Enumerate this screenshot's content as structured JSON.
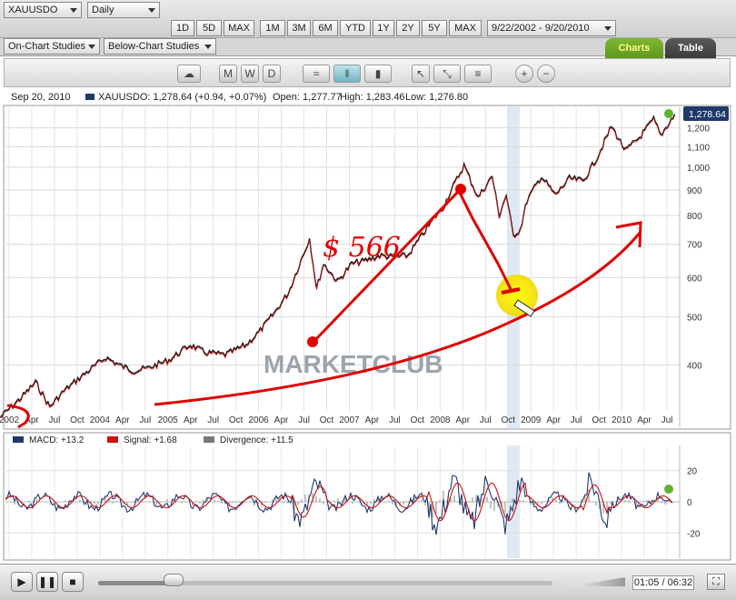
{
  "toolbar": {
    "symbol": "XAUUSDO",
    "interval": "Daily",
    "range_buttons_left": [
      "1D",
      "5D",
      "MAX"
    ],
    "range_buttons_right": [
      "1M",
      "3M",
      "6M",
      "YTD",
      "1Y",
      "2Y",
      "5Y",
      "MAX"
    ],
    "date_range": "9/22/2002 - 9/20/2010",
    "on_chart_studies": "On-Chart Studies",
    "below_chart_studies": "Below-Chart Studies"
  },
  "tabs": {
    "charts": "Charts",
    "table": "Table"
  },
  "icons": [
    "chat-bubble-icon",
    "m-pattern-icon",
    "w-pattern-icon",
    "d-pattern-icon",
    "line-chart-icon",
    "ohlc-chart-icon",
    "candle-chart-icon",
    "pointer-icon",
    "trendline-icon",
    "fibonacci-icon",
    "zoom-in-icon",
    "zoom-out-icon"
  ],
  "info": {
    "date": "Sep 20, 2010",
    "quote": "XAUUSDO: 1,278.64 (+0.94, +0.07%)",
    "open": "Open: 1,277.77",
    "high": "High: 1,283.46",
    "low": "Low: 1,276.80"
  },
  "watermark": "MARKETCLUB",
  "annotation": {
    "text": "$ 566"
  },
  "last_price_tag": "1,278.64",
  "chart_data": [
    {
      "type": "line",
      "series": [
        {
          "name": "XAUUSDO",
          "points": [
            [
              "2002-09",
              315
            ],
            [
              "2002-12",
              345
            ],
            [
              "2003-02",
              370
            ],
            [
              "2003-04",
              330
            ],
            [
              "2003-06",
              355
            ],
            [
              "2003-09",
              385
            ],
            [
              "2003-12",
              415
            ],
            [
              "2004-02",
              400
            ],
            [
              "2004-04",
              390
            ],
            [
              "2004-06",
              395
            ],
            [
              "2004-09",
              410
            ],
            [
              "2004-12",
              440
            ],
            [
              "2005-02",
              425
            ],
            [
              "2005-05",
              420
            ],
            [
              "2005-08",
              440
            ],
            [
              "2005-10",
              470
            ],
            [
              "2005-12",
              510
            ],
            [
              "2006-02",
              560
            ],
            [
              "2006-05",
              720
            ],
            [
              "2006-06",
              570
            ],
            [
              "2006-07",
              640
            ],
            [
              "2006-09",
              590
            ],
            [
              "2006-11",
              640
            ],
            [
              "2007-01",
              650
            ],
            [
              "2007-03",
              665
            ],
            [
              "2007-05",
              660
            ],
            [
              "2007-07",
              665
            ],
            [
              "2007-09",
              730
            ],
            [
              "2007-11",
              800
            ],
            [
              "2007-12",
              830
            ],
            [
              "2008-01",
              890
            ],
            [
              "2008-03",
              1010
            ],
            [
              "2008-05",
              870
            ],
            [
              "2008-07",
              960
            ],
            [
              "2008-08",
              800
            ],
            [
              "2008-09",
              880
            ],
            [
              "2008-10",
              730
            ],
            [
              "2008-11",
              750
            ],
            [
              "2008-12",
              860
            ],
            [
              "2009-02",
              960
            ],
            [
              "2009-04",
              880
            ],
            [
              "2009-06",
              950
            ],
            [
              "2009-08",
              940
            ],
            [
              "2009-10",
              1050
            ],
            [
              "2009-12",
              1210
            ],
            [
              "2010-02",
              1080
            ],
            [
              "2010-04",
              1150
            ],
            [
              "2010-06",
              1250
            ],
            [
              "2010-07",
              1160
            ],
            [
              "2010-09",
              1278.64
            ]
          ]
        }
      ],
      "y_ticks": [
        400,
        500,
        600,
        700,
        800,
        900,
        1000,
        1100,
        1200
      ],
      "y_tick_labels": [
        "400",
        "500",
        "600",
        "700",
        "800",
        "900",
        "1,000",
        "1,100",
        "1,200"
      ],
      "x_ticks": [
        "2002",
        "Apr",
        "Jul",
        "Oct",
        "2004",
        "Apr",
        "Jul",
        "2005",
        "Apr",
        "Jul",
        "Oct",
        "2006",
        "Apr",
        "Jul",
        "Oct",
        "2007",
        "Apr",
        "Jul",
        "Oct",
        "2008",
        "Apr",
        "Jul",
        "Oct",
        "2009",
        "Apr",
        "Jul",
        "Oct",
        "2010",
        "Apr",
        "Jul"
      ],
      "ylim": [
        300,
        1320
      ],
      "grid": true,
      "scale": "log"
    },
    {
      "type": "line",
      "legend": [
        {
          "name": "MACD: +13.2",
          "color": "#1f3a6a"
        },
        {
          "name": "Signal: +1.68",
          "color": "#cc1111"
        },
        {
          "name": "Divergence: +11.5",
          "color": "#777777"
        }
      ],
      "y_ticks": [
        20,
        0,
        -20
      ],
      "y_tick_labels": [
        "20",
        "0",
        "-20"
      ],
      "ylim": [
        -35,
        35
      ],
      "grid": true
    }
  ],
  "player": {
    "time": "01:05 / 06:32",
    "progress": 0.166
  }
}
